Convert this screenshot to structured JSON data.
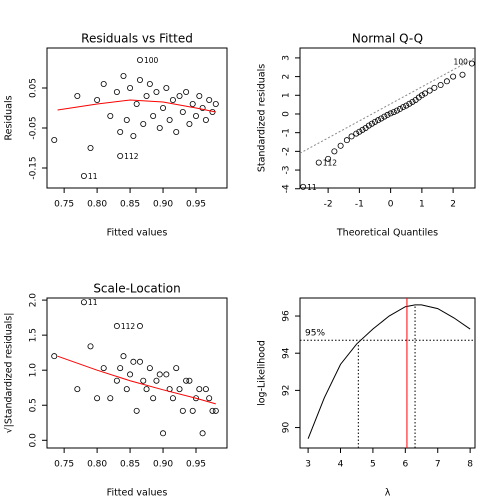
{
  "chart_data": [
    {
      "type": "scatter",
      "title": "Residuals vs Fitted",
      "x_label": "Fitted values",
      "y_label": "Residuals",
      "xlim": [
        0.724,
        0.997
      ],
      "ylim": [
        -0.2,
        0.15
      ],
      "xticks": [
        0.75,
        {
          "value": 0.8,
          "label": "0.80"
        },
        0.85,
        {
          "value": 0.9,
          "label": "0.90"
        },
        0.95
      ],
      "yticks": [
        -0.15,
        -0.05,
        0.05
      ],
      "x": [
        0.865,
        0.78,
        0.835,
        0.735,
        0.77,
        0.79,
        0.8,
        0.81,
        0.82,
        0.83,
        0.835,
        0.84,
        0.845,
        0.85,
        0.855,
        0.86,
        0.865,
        0.87,
        0.875,
        0.88,
        0.885,
        0.89,
        0.895,
        0.9,
        0.905,
        0.91,
        0.915,
        0.92,
        0.925,
        0.93,
        0.935,
        0.94,
        0.945,
        0.95,
        0.955,
        0.96,
        0.965,
        0.97,
        0.975,
        0.98
      ],
      "y": [
        0.12,
        -0.17,
        -0.12,
        -0.08,
        0.03,
        -0.1,
        0.02,
        0.06,
        -0.02,
        0.04,
        -0.06,
        0.08,
        -0.03,
        0.05,
        -0.07,
        0.01,
        0.07,
        -0.04,
        0.03,
        0.06,
        -0.02,
        0.04,
        -0.05,
        0.0,
        0.05,
        -0.03,
        0.02,
        -0.06,
        0.03,
        -0.01,
        0.04,
        -0.04,
        0.01,
        -0.02,
        0.03,
        0.0,
        -0.03,
        0.02,
        -0.01,
        0.01
      ],
      "point_labels": [
        "100",
        "11",
        "112",
        null,
        null,
        null,
        null,
        null,
        null,
        null,
        null,
        null,
        null,
        null,
        null,
        null,
        null,
        null,
        null,
        null,
        null,
        null,
        null,
        null,
        null,
        null,
        null,
        null,
        null,
        null,
        null,
        null,
        null,
        null,
        null,
        null,
        null,
        null,
        null,
        null
      ],
      "smooth": {
        "x": [
          0.74,
          0.8,
          0.85,
          0.9,
          0.95,
          0.98
        ],
        "y": [
          -0.005,
          0.01,
          0.02,
          0.015,
          0.0,
          -0.01
        ],
        "color": "#ff0000"
      }
    },
    {
      "type": "qq",
      "title": "Normal Q-Q",
      "x_label": "Theoretical Quantiles",
      "y_label": "Standardized residuals",
      "xlim": [
        -2.9,
        2.7
      ],
      "ylim": [
        -3.96,
        3.53
      ],
      "xticks": [
        -2,
        -1,
        0,
        1,
        2
      ],
      "yticks": [
        -4,
        -3,
        -2,
        -1,
        0,
        1,
        2,
        3
      ],
      "x": [
        -2.8,
        -2.3,
        -2.0,
        -1.8,
        -1.6,
        -1.4,
        -1.25,
        -1.1,
        -1.0,
        -0.9,
        -0.8,
        -0.7,
        -0.6,
        -0.5,
        -0.4,
        -0.3,
        -0.2,
        -0.1,
        0,
        0.1,
        0.2,
        0.3,
        0.4,
        0.5,
        0.6,
        0.7,
        0.8,
        0.9,
        1.0,
        1.1,
        1.25,
        1.4,
        1.6,
        1.8,
        2.0,
        2.3,
        2.6
      ],
      "y": [
        -3.9,
        -2.6,
        -2.4,
        -2.0,
        -1.7,
        -1.4,
        -1.2,
        -1.05,
        -0.95,
        -0.85,
        -0.75,
        -0.62,
        -0.52,
        -0.42,
        -0.33,
        -0.24,
        -0.14,
        -0.05,
        0.03,
        0.1,
        0.18,
        0.27,
        0.37,
        0.45,
        0.55,
        0.65,
        0.75,
        0.88,
        1.0,
        1.1,
        1.25,
        1.4,
        1.55,
        1.75,
        2.0,
        2.1,
        2.7
      ],
      "point_labels": [
        "11",
        "112",
        null,
        null,
        null,
        null,
        null,
        null,
        null,
        null,
        null,
        null,
        null,
        null,
        null,
        null,
        null,
        null,
        null,
        null,
        null,
        null,
        null,
        null,
        null,
        null,
        null,
        null,
        null,
        null,
        null,
        null,
        null,
        null,
        null,
        null,
        "100"
      ],
      "ref_line": {
        "x": [
          -2.9,
          2.7
        ],
        "y": [
          -2.1,
          3.0
        ],
        "color": "#888888"
      }
    },
    {
      "type": "scatter",
      "title": "Scale-Location",
      "x_label": "Fitted values",
      "y_label": "√|Standardized residuals|",
      "xlim": [
        0.724,
        0.997
      ],
      "ylim": [
        -0.11,
        2.03
      ],
      "xticks": [
        0.75,
        {
          "value": 0.8,
          "label": "0.80"
        },
        0.85,
        {
          "value": 0.9,
          "label": "0.90"
        },
        0.95
      ],
      "yticks": [
        {
          "value": 0,
          "label": "0.0"
        },
        0.5,
        {
          "value": 1,
          "label": "1.0"
        },
        1.5,
        {
          "value": 2,
          "label": "2.0"
        }
      ],
      "x": [
        0.865,
        0.78,
        0.83,
        0.735,
        0.77,
        0.79,
        0.8,
        0.81,
        0.82,
        0.83,
        0.835,
        0.84,
        0.845,
        0.85,
        0.855,
        0.86,
        0.865,
        0.87,
        0.875,
        0.88,
        0.885,
        0.89,
        0.895,
        0.9,
        0.905,
        0.91,
        0.915,
        0.92,
        0.925,
        0.93,
        0.935,
        0.94,
        0.945,
        0.95,
        0.955,
        0.96,
        0.965,
        0.97,
        0.975,
        0.98
      ],
      "y": [
        1.63,
        1.97,
        1.63,
        1.2,
        0.73,
        1.34,
        0.6,
        1.03,
        0.6,
        0.85,
        1.03,
        1.2,
        0.73,
        0.94,
        1.12,
        0.42,
        1.12,
        0.85,
        0.73,
        1.03,
        0.6,
        0.85,
        0.94,
        0.1,
        0.94,
        0.73,
        0.6,
        1.03,
        0.73,
        0.42,
        0.85,
        0.85,
        0.42,
        0.6,
        0.73,
        0.1,
        0.73,
        0.6,
        0.42,
        0.42
      ],
      "point_labels": [
        null,
        "11",
        "112",
        null,
        null,
        null,
        null,
        null,
        null,
        null,
        null,
        null,
        null,
        null,
        null,
        null,
        null,
        null,
        null,
        null,
        null,
        null,
        null,
        null,
        null,
        null,
        null,
        null,
        null,
        null,
        null,
        null,
        null,
        null,
        null,
        null,
        null,
        null,
        null,
        null
      ],
      "smooth": {
        "x": [
          0.74,
          0.8,
          0.85,
          0.9,
          0.95,
          0.98
        ],
        "y": [
          1.2,
          1.0,
          0.85,
          0.72,
          0.6,
          0.52
        ],
        "color": "#ff0000"
      }
    },
    {
      "type": "line",
      "x_label": "λ",
      "y_label": "log-Likelihood",
      "xlim": [
        2.75,
        8.15
      ],
      "ylim": [
        88.9,
        96.97
      ],
      "xticks": [
        3,
        4,
        5,
        6,
        7,
        8
      ],
      "yticks": [
        90,
        92,
        94,
        96
      ],
      "x": [
        3,
        3.5,
        4,
        4.5,
        5,
        5.5,
        6,
        6.3,
        6.5,
        7,
        7.5,
        8
      ],
      "y": [
        89.4,
        91.6,
        93.4,
        94.5,
        95.3,
        96.0,
        96.5,
        96.6,
        96.6,
        96.4,
        95.9,
        95.3
      ],
      "ci_label": "95%",
      "ci_loglik": 94.7,
      "ci_lambdas": [
        4.55,
        6.3
      ],
      "marked_lambda": 6.05,
      "marked_color": "#ff0000"
    }
  ]
}
